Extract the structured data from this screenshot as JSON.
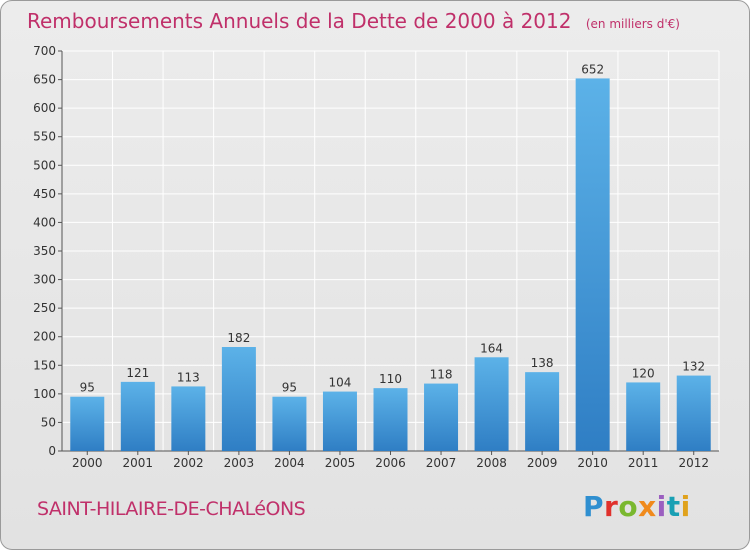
{
  "header": {
    "title": "Remboursements Annuels de la Dette de 2000 à 2012",
    "unit": "(en milliers d'€)"
  },
  "footer": {
    "commune": "SAINT-HILAIRE-DE-CHALéONS",
    "logo_text": "Proxiti"
  },
  "colors": {
    "title": "#c0306a",
    "bar_light": "#5cb2e8",
    "bar_dark": "#2f7ec4",
    "grid": "#ffffff"
  },
  "chart_data": {
    "type": "bar",
    "title": "Remboursements Annuels de la Dette de 2000 à 2012",
    "xlabel": "",
    "ylabel": "",
    "categories": [
      "2000",
      "2001",
      "2002",
      "2003",
      "2004",
      "2005",
      "2006",
      "2007",
      "2008",
      "2009",
      "2010",
      "2011",
      "2012"
    ],
    "values": [
      95,
      121,
      113,
      182,
      95,
      104,
      110,
      118,
      164,
      138,
      652,
      120,
      132
    ],
    "ylim": [
      0,
      700
    ],
    "yticks": [
      0,
      50,
      100,
      150,
      200,
      250,
      300,
      350,
      400,
      450,
      500,
      550,
      600,
      650,
      700
    ],
    "grid": true,
    "data_labels": true
  }
}
